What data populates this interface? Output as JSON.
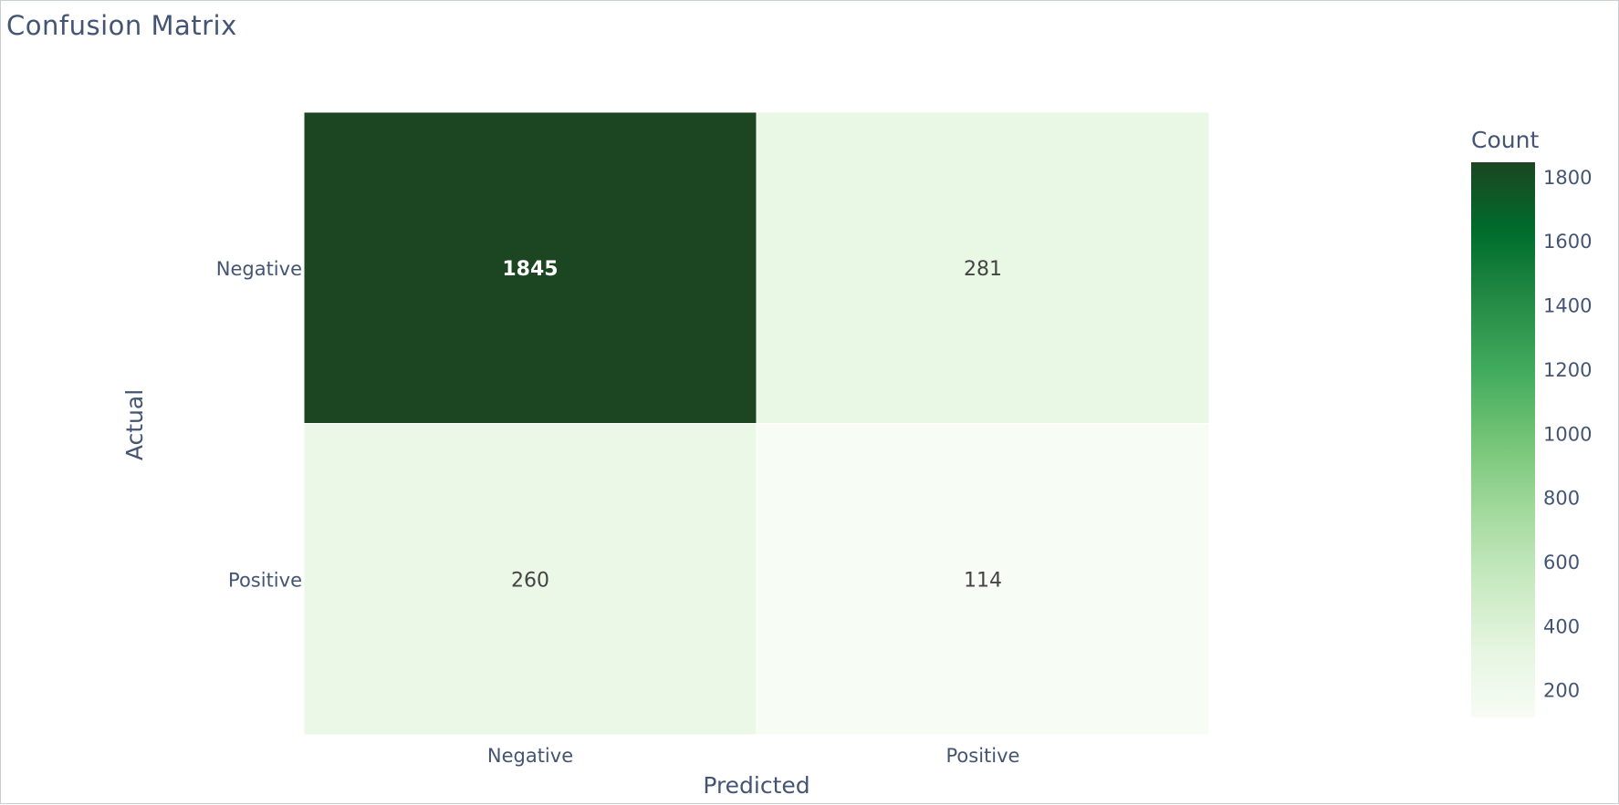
{
  "chart_data": {
    "type": "heatmap",
    "title": "Confusion Matrix",
    "xlabel": "Predicted",
    "ylabel": "Actual",
    "x_categories": [
      "Negative",
      "Positive"
    ],
    "y_categories": [
      "Negative",
      "Positive"
    ],
    "z": [
      [
        1845,
        281
      ],
      [
        260,
        114
      ]
    ],
    "text": [
      [
        "1845",
        "281"
      ],
      [
        "260",
        "114"
      ]
    ],
    "colorscale": "Greens",
    "colorscale_stops": [
      "#f7fcf5",
      "#e5f5e0",
      "#c7e9c0",
      "#a1d99b",
      "#74c476",
      "#41ab5d",
      "#238b45",
      "#006d2c",
      "#1b4621"
    ],
    "zmin": 114,
    "zmax": 1845,
    "colorbar": {
      "title": "Count",
      "tickvals": [
        200,
        400,
        600,
        800,
        1000,
        1200,
        1400,
        1600,
        1800
      ],
      "ticktext": [
        "200",
        "400",
        "600",
        "800",
        "1000",
        "1200",
        "1400",
        "1600",
        "1800"
      ]
    },
    "grid": false
  }
}
